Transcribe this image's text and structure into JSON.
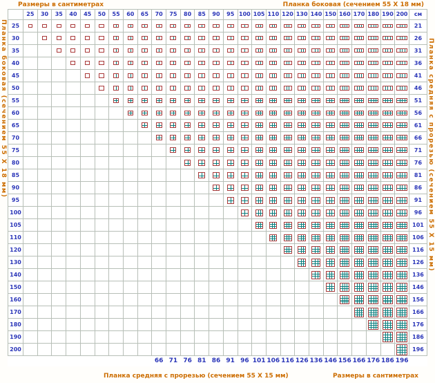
{
  "labels": {
    "size_units_top": "Размеры в сантиметрах",
    "side_plank_top": "Планка боковая (сечением 55 Х 18 мм)",
    "side_plank_left_vertical": "Планка боковая (сечением 55 Х 18 мм)",
    "middle_plank_right_vertical": "Планка средняя с прорезью (сечением 55 Х 15 мм)",
    "middle_plank_bottom": "Планка средняя с прорезью (сечением 55 Х 15 мм)",
    "size_units_bottom": "Размеры в сантиметрах",
    "unit_header": "см"
  },
  "colors": {
    "label_orange": "#cc6d00",
    "number_blue": "#2a35b8",
    "grid_line": "#b7bfb7",
    "icon_border": "#a93939",
    "icon_line": "#057c7c",
    "background": "#fffefb"
  },
  "chart_data": {
    "type": "table",
    "column_sizes_cm": [
      25,
      30,
      35,
      40,
      45,
      50,
      55,
      60,
      65,
      70,
      75,
      80,
      85,
      90,
      95,
      100,
      105,
      110,
      120,
      130,
      140,
      150,
      160,
      170,
      180,
      190,
      200
    ],
    "row_sizes_cm": [
      25,
      30,
      35,
      40,
      45,
      50,
      55,
      60,
      65,
      70,
      75,
      80,
      85,
      90,
      95,
      100,
      105,
      110,
      120,
      130,
      140,
      150,
      160,
      170,
      180,
      190,
      200
    ],
    "cells_rule": "grille pictogram is shown only where column size >= row size (upper-triangle matrix); pictogram panes grow with width and height",
    "side_plank_cm": [
      21,
      26,
      31,
      36,
      41,
      46,
      51,
      56,
      61,
      66,
      71,
      76,
      81,
      86,
      91,
      96,
      101,
      106,
      116,
      126,
      136,
      146,
      156,
      166,
      176,
      186,
      196
    ],
    "middle_plank_cm": {
      "from_column_size": 70,
      "values": [
        66,
        71,
        76,
        81,
        86,
        91,
        96,
        101,
        106,
        116,
        126,
        136,
        146,
        156,
        166,
        176,
        186,
        196
      ]
    },
    "panes_by_size": {
      "25": 1,
      "30": 1,
      "35": 1,
      "40": 1,
      "45": 1,
      "50": 1,
      "55": 2,
      "60": 2,
      "65": 2,
      "70": 2,
      "75": 2,
      "80": 2,
      "85": 2,
      "90": 2,
      "95": 2,
      "100": 2,
      "105": 3,
      "110": 3,
      "120": 3,
      "130": 3,
      "140": 3,
      "150": 3,
      "160": 4,
      "170": 4,
      "180": 4,
      "190": 4,
      "200": 4
    }
  }
}
